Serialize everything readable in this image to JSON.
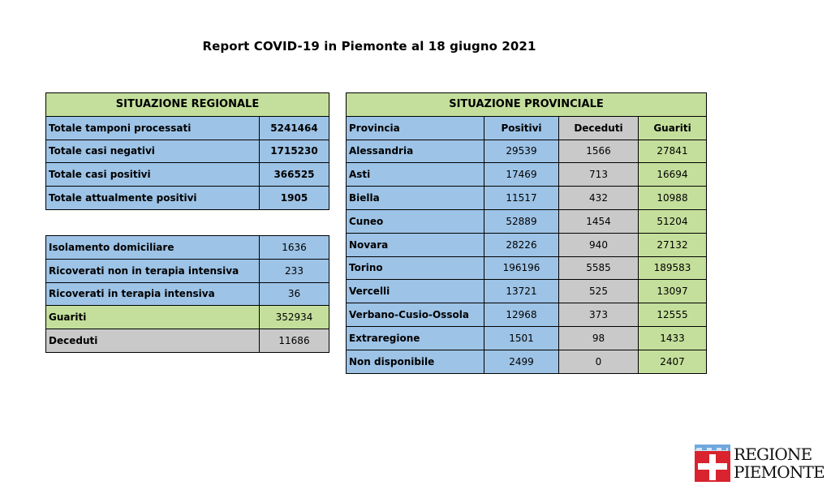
{
  "title": "Report COVID-19 in Piemonte al 18 giugno 2021",
  "regionale": {
    "header": "SITUAZIONE REGIONALE",
    "rows": [
      {
        "label": "Totale tamponi processati",
        "value": "5241464"
      },
      {
        "label": "Totale casi negativi",
        "value": "1715230"
      },
      {
        "label": "Totale casi positivi",
        "value": "366525"
      },
      {
        "label": "Totale attualmente positivi",
        "value": "1905"
      }
    ]
  },
  "dettaglio": {
    "rows": [
      {
        "label": "Isolamento domiciliare",
        "value": "1636"
      },
      {
        "label": "Ricoverati non in terapia intensiva",
        "value": "233"
      },
      {
        "label": "Ricoverati in terapia intensiva",
        "value": "36"
      },
      {
        "label": "Guariti",
        "value": "352934"
      },
      {
        "label": "Deceduti",
        "value": "11686"
      }
    ]
  },
  "provinciale": {
    "header": "SITUAZIONE PROVINCIALE",
    "columns": [
      "Provincia",
      "Positivi",
      "Deceduti",
      "Guariti"
    ],
    "rows": [
      {
        "provincia": "Alessandria",
        "positivi": "29539",
        "deceduti": "1566",
        "guariti": "27841"
      },
      {
        "provincia": "Asti",
        "positivi": "17469",
        "deceduti": "713",
        "guariti": "16694"
      },
      {
        "provincia": "Biella",
        "positivi": "11517",
        "deceduti": "432",
        "guariti": "10988"
      },
      {
        "provincia": "Cuneo",
        "positivi": "52889",
        "deceduti": "1454",
        "guariti": "51204"
      },
      {
        "provincia": "Novara",
        "positivi": "28226",
        "deceduti": "940",
        "guariti": "27132"
      },
      {
        "provincia": "Torino",
        "positivi": "196196",
        "deceduti": "5585",
        "guariti": "189583"
      },
      {
        "provincia": "Vercelli",
        "positivi": "13721",
        "deceduti": "525",
        "guariti": "13097"
      },
      {
        "provincia": "Verbano-Cusio-Ossola",
        "positivi": "12968",
        "deceduti": "373",
        "guariti": "12555"
      },
      {
        "provincia": "Extraregione",
        "positivi": "1501",
        "deceduti": "98",
        "guariti": "1433"
      },
      {
        "provincia": "Non disponibile",
        "positivi": "2499",
        "deceduti": "0",
        "guariti": "2407"
      }
    ]
  },
  "logo": {
    "line1": "REGIONE",
    "line2": "PIEMONTE",
    "icon": "piemonte-crest-icon"
  },
  "colors": {
    "green": "#c4df9b",
    "blue": "#9dc3e6",
    "grey": "#c9c9c9",
    "logo_red": "#d9232e",
    "logo_blue": "#6fa8dc"
  }
}
